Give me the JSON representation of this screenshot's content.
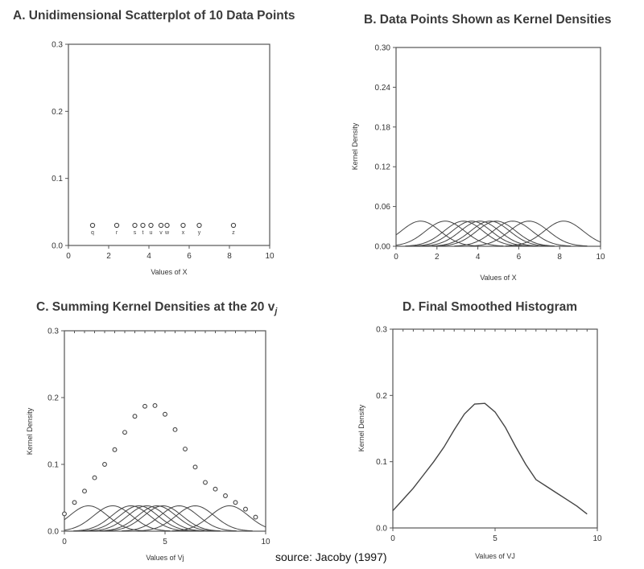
{
  "source_note": "source:  Jacoby (1997)",
  "observations": [
    1.2,
    2.4,
    3.3,
    3.7,
    4.1,
    4.6,
    4.9,
    5.7,
    6.5,
    8.2
  ],
  "observation_labels": [
    "q",
    "r",
    "s",
    "t",
    "u",
    "v",
    "w",
    "x",
    "y",
    "z"
  ],
  "kernel_peak": 0.038,
  "evaluation_points": [
    0,
    0.5,
    1,
    1.5,
    2,
    2.5,
    3,
    3.5,
    4,
    4.5,
    5,
    5.5,
    6,
    6.5,
    7,
    7.5,
    8,
    8.5,
    9,
    9.5
  ],
  "chart_data": [
    {
      "type": "scatter",
      "title": "A. Unidimensional Scatterplot of 10 Data Points",
      "xlabel": "Values of X",
      "ylabel": "",
      "xlim": [
        0,
        10
      ],
      "ylim": [
        0,
        0.3
      ],
      "xticks": [
        "0",
        "2",
        "4",
        "6",
        "8",
        "10"
      ],
      "yticks": [
        "0.0",
        "0.1",
        "0.2",
        "0.3"
      ],
      "points": [
        {
          "x": 1.2,
          "y": 0.03
        },
        {
          "x": 2.4,
          "y": 0.03
        },
        {
          "x": 3.3,
          "y": 0.03
        },
        {
          "x": 3.7,
          "y": 0.03
        },
        {
          "x": 4.1,
          "y": 0.03
        },
        {
          "x": 4.6,
          "y": 0.03
        },
        {
          "x": 4.9,
          "y": 0.03
        },
        {
          "x": 5.7,
          "y": 0.03
        },
        {
          "x": 6.5,
          "y": 0.03
        },
        {
          "x": 8.2,
          "y": 0.03
        }
      ],
      "point_labels": [
        "q",
        "r",
        "s",
        "t",
        "u",
        "v",
        "w",
        "x",
        "y",
        "z"
      ]
    },
    {
      "type": "line",
      "title": "B. Data Points Shown as Kernel Densities",
      "xlabel": "Values of X",
      "ylabel": "Kernel Density",
      "xlim": [
        0,
        10
      ],
      "ylim": [
        0,
        0.3
      ],
      "xticks": [
        "0",
        "2",
        "4",
        "6",
        "8",
        "10"
      ],
      "yticks": [
        "0.00",
        "0.06",
        "0.12",
        "0.18",
        "0.24",
        "0.30"
      ],
      "kernel_centers": [
        1.2,
        2.4,
        3.3,
        3.7,
        4.1,
        4.6,
        4.9,
        5.7,
        6.5,
        8.2
      ],
      "kernel_peak": 0.038
    },
    {
      "type": "line",
      "title": "C. Summing Kernel Densities at the 20 v",
      "title_subscript": "j",
      "xlabel": "Values of Vj",
      "ylabel": "Kernel Density",
      "xlim": [
        0,
        10
      ],
      "ylim": [
        0,
        0.3
      ],
      "xticks": [
        "0",
        "5",
        "10"
      ],
      "yticks": [
        "0.0",
        "0.1",
        "0.2",
        "0.3"
      ],
      "kernel_centers": [
        1.2,
        2.4,
        3.3,
        3.7,
        4.1,
        4.6,
        4.9,
        5.7,
        6.5,
        8.2
      ],
      "kernel_peak": 0.038,
      "summed_points": [
        {
          "x": 0,
          "y": 0.026
        },
        {
          "x": 0.5,
          "y": 0.043
        },
        {
          "x": 1,
          "y": 0.06
        },
        {
          "x": 1.5,
          "y": 0.08
        },
        {
          "x": 2,
          "y": 0.1
        },
        {
          "x": 2.5,
          "y": 0.122
        },
        {
          "x": 3,
          "y": 0.148
        },
        {
          "x": 3.5,
          "y": 0.172
        },
        {
          "x": 4,
          "y": 0.187
        },
        {
          "x": 4.5,
          "y": 0.188
        },
        {
          "x": 5,
          "y": 0.175
        },
        {
          "x": 5.5,
          "y": 0.152
        },
        {
          "x": 6,
          "y": 0.123
        },
        {
          "x": 6.5,
          "y": 0.096
        },
        {
          "x": 7,
          "y": 0.073
        },
        {
          "x": 7.5,
          "y": 0.063
        },
        {
          "x": 8,
          "y": 0.053
        },
        {
          "x": 8.5,
          "y": 0.043
        },
        {
          "x": 9,
          "y": 0.033
        },
        {
          "x": 9.5,
          "y": 0.021
        }
      ]
    },
    {
      "type": "line",
      "title": "D. Final Smoothed Histogram",
      "xlabel": "Values of VJ",
      "ylabel": "Kernel Density",
      "xlim": [
        0,
        10
      ],
      "ylim": [
        0,
        0.3
      ],
      "xticks": [
        "0",
        "5",
        "10"
      ],
      "yticks": [
        "0.0",
        "0.1",
        "0.2",
        "0.3"
      ],
      "x": [
        0,
        0.5,
        1,
        1.5,
        2,
        2.5,
        3,
        3.5,
        4,
        4.5,
        5,
        5.5,
        6,
        6.5,
        7,
        7.5,
        8,
        8.5,
        9,
        9.5
      ],
      "y": [
        0.026,
        0.043,
        0.06,
        0.08,
        0.1,
        0.122,
        0.148,
        0.172,
        0.187,
        0.188,
        0.175,
        0.152,
        0.123,
        0.096,
        0.073,
        0.063,
        0.053,
        0.043,
        0.033,
        0.021
      ]
    }
  ]
}
